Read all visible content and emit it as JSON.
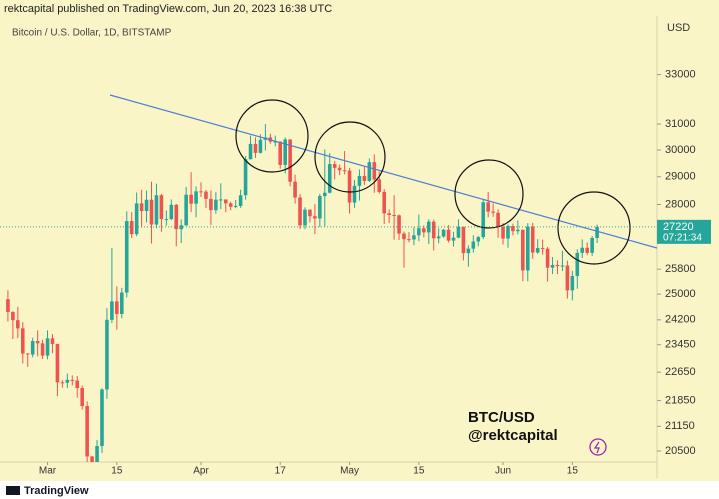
{
  "chart_data": {
    "type": "candlestick",
    "header": "rektcapital published on TradingView.com, Jun 20, 2023 16:38 UTC",
    "title": "Bitcoin / U.S. Dollar, 1D, BITSTAMP",
    "y_axis_label": "USD",
    "watermark": [
      "BTC/USD",
      "@rektcapital"
    ],
    "footer": "TradingView",
    "log_scale": true,
    "up_color": "#26a69a",
    "down_color": "#ef5350",
    "last_price": 27220,
    "countdown": "07:21:34",
    "ylim": [
      20217,
      35450
    ],
    "yticks": [
      33000,
      31000,
      30000,
      29000,
      28000,
      25800,
      25000,
      24200,
      23450,
      22650,
      21850,
      21150,
      20500
    ],
    "xlim": [
      -1.6,
      131.1
    ],
    "xticks": [
      {
        "value": 8,
        "label": "Mar"
      },
      {
        "value": 22,
        "label": "15"
      },
      {
        "value": 39,
        "label": "Apr"
      },
      {
        "value": 55,
        "label": "17"
      },
      {
        "value": 69,
        "label": "May"
      },
      {
        "value": 83,
        "label": "15"
      },
      {
        "value": 100,
        "label": "Jun"
      },
      {
        "value": 114,
        "label": "15"
      }
    ],
    "open": [
      24840,
      24440,
      24190,
      23940,
      23190,
      23160,
      23560,
      23490,
      23130,
      23640,
      23470,
      22360,
      22350,
      22430,
      22410,
      22200,
      21700,
      20360,
      20190,
      20630,
      22160,
      24200,
      24770,
      24380,
      25050,
      27420,
      26970,
      28040,
      27770,
      28170,
      27300,
      28330,
      27490,
      27490,
      27990,
      27140,
      27270,
      28350,
      28030,
      28470,
      28460,
      28200,
      27800,
      28170,
      28180,
      28040,
      27920,
      27950,
      28330,
      29650,
      30230,
      29890,
      30390,
      30480,
      30320,
      30320,
      29440,
      30400,
      28820,
      28250,
      27270,
      27820,
      27590,
      27510,
      28300,
      28420,
      29470,
      29330,
      29240,
      29230,
      28070,
      28670,
      29030,
      28850,
      29540,
      28900,
      28450,
      27690,
      27630,
      27620,
      26990,
      26800,
      26790,
      26930,
      27170,
      27030,
      27400,
      26830,
      26890,
      27120,
      26750,
      26850,
      27220,
      26330,
      26480,
      26720,
      26870,
      28080,
      27750,
      27710,
      27220,
      26820,
      27250,
      27070,
      27120,
      25760,
      27230,
      26350,
      26500,
      26480,
      25850,
      25940,
      25900,
      25920,
      25120,
      25580,
      26340,
      26510,
      26340,
      26840
    ],
    "high": [
      25120,
      24470,
      24600,
      24130,
      23200,
      23660,
      23880,
      23600,
      23880,
      23770,
      23480,
      22420,
      22610,
      22560,
      22540,
      22270,
      21830,
      20370,
      20790,
      22190,
      24560,
      26500,
      25250,
      25200,
      27760,
      27730,
      28430,
      28530,
      28500,
      28820,
      28750,
      28380,
      27790,
      28180,
      28020,
      27480,
      28630,
      29170,
      28650,
      28800,
      28520,
      28500,
      28440,
      28760,
      28180,
      28100,
      28160,
      28530,
      29770,
      30550,
      30480,
      30600,
      31000,
      30620,
      30550,
      30330,
      30480,
      30410,
      29080,
      28370,
      27900,
      27820,
      28010,
      28380,
      30020,
      29880,
      29590,
      29450,
      29960,
      29330,
      28880,
      29270,
      29370,
      29680,
      29830,
      29200,
      28550,
      27830,
      28330,
      27650,
      27060,
      27040,
      27200,
      27650,
      27270,
      27480,
      27470,
      27170,
      27150,
      27280,
      27050,
      27480,
      27220,
      26590,
      26930,
      26910,
      28200,
      28450,
      28040,
      27830,
      27350,
      27300,
      27330,
      27440,
      27130,
      27350,
      27360,
      26800,
      26780,
      26530,
      26200,
      26090,
      26410,
      26080,
      25750,
      26460,
      26790,
      26690,
      26910,
      27300
    ],
    "low": [
      24150,
      23620,
      23650,
      22900,
      22800,
      23080,
      23110,
      23030,
      23020,
      23200,
      21970,
      22210,
      22200,
      22270,
      21930,
      21600,
      20050,
      19570,
      19780,
      20450,
      21900,
      24100,
      23900,
      24250,
      24900,
      26840,
      26900,
      27200,
      27370,
      26650,
      27170,
      27050,
      27260,
      27450,
      26560,
      26670,
      27260,
      27730,
      27550,
      28270,
      27870,
      27280,
      27680,
      27840,
      27730,
      27800,
      27870,
      27880,
      28170,
      29640,
      29700,
      29860,
      29980,
      30240,
      30140,
      29300,
      29120,
      28650,
      28030,
      27150,
      27140,
      27370,
      26970,
      27220,
      27240,
      28390,
      28900,
      29060,
      29090,
      27680,
      27880,
      28140,
      28700,
      28810,
      28420,
      28390,
      27320,
      27350,
      26780,
      26770,
      25850,
      26690,
      26600,
      26730,
      26860,
      26630,
      26420,
      26660,
      26850,
      26690,
      26550,
      26830,
      26090,
      25880,
      26350,
      26560,
      26800,
      27550,
      27570,
      26850,
      26620,
      26510,
      26930,
      26960,
      25410,
      25410,
      26140,
      26310,
      26280,
      25400,
      25640,
      25640,
      25740,
      24860,
      24800,
      25170,
      26170,
      26260,
      26240,
      26670
    ],
    "close": [
      24440,
      24190,
      23940,
      23190,
      23160,
      23560,
      23490,
      23130,
      23640,
      23470,
      22360,
      22350,
      22430,
      22410,
      22200,
      21700,
      20360,
      20190,
      20630,
      22160,
      24200,
      24770,
      24380,
      25050,
      27420,
      26970,
      28040,
      27770,
      28170,
      27300,
      28330,
      27490,
      27490,
      27990,
      27140,
      27270,
      28350,
      28030,
      28470,
      28460,
      28200,
      27800,
      28170,
      28180,
      28040,
      27920,
      27950,
      28330,
      29650,
      30230,
      29890,
      30390,
      30480,
      30320,
      30320,
      29440,
      30400,
      28820,
      28250,
      27270,
      27820,
      27590,
      27510,
      28300,
      28420,
      29470,
      29330,
      29240,
      29230,
      28070,
      28670,
      29030,
      28850,
      29540,
      28900,
      28450,
      27690,
      27630,
      27620,
      26990,
      26800,
      26790,
      26930,
      27170,
      27030,
      27400,
      26830,
      26890,
      27120,
      26750,
      26850,
      27220,
      26330,
      26480,
      26720,
      26870,
      28080,
      27750,
      27710,
      27220,
      26820,
      27250,
      27070,
      27120,
      25760,
      27230,
      26350,
      26500,
      26480,
      25850,
      25940,
      25900,
      25920,
      25120,
      25580,
      26340,
      26510,
      26340,
      26840,
      27220
    ]
  }
}
